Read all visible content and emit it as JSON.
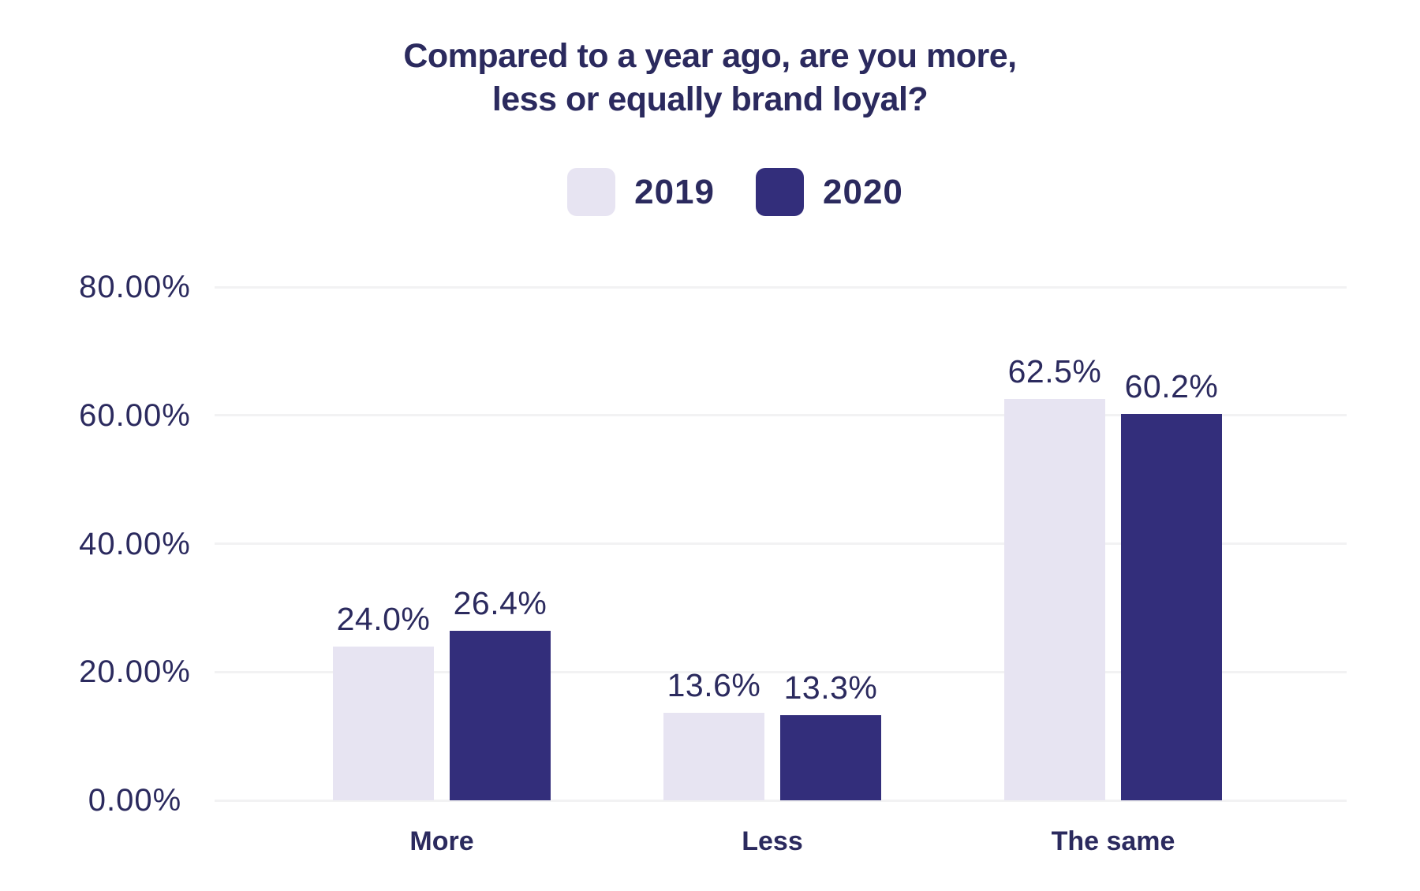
{
  "chart_data": {
    "type": "bar",
    "title_lines": [
      "Compared to a year ago, are you more,",
      "less or equally brand loyal?"
    ],
    "categories": [
      "More",
      "Less",
      "The same"
    ],
    "series": [
      {
        "name": "2019",
        "color": "#E7E4F2",
        "values": [
          24.0,
          13.6,
          62.5
        ],
        "value_labels": [
          "24.0%",
          "13.6%",
          "62.5%"
        ]
      },
      {
        "name": "2020",
        "color": "#332E7B",
        "values": [
          26.4,
          13.3,
          60.2
        ],
        "value_labels": [
          "26.4%",
          "13.3%",
          "60.2%"
        ]
      }
    ],
    "y_axis": {
      "ticks": [
        "0.00%",
        "20.00%",
        "40.00%",
        "60.00%",
        "80.00%"
      ],
      "min": 0,
      "max": 80,
      "step": 20
    },
    "grid": true,
    "legend_position": "top",
    "colors": {
      "text": "#2B2A5E",
      "gridline": "#F2F2F3",
      "background": "#FFFFFF"
    }
  }
}
